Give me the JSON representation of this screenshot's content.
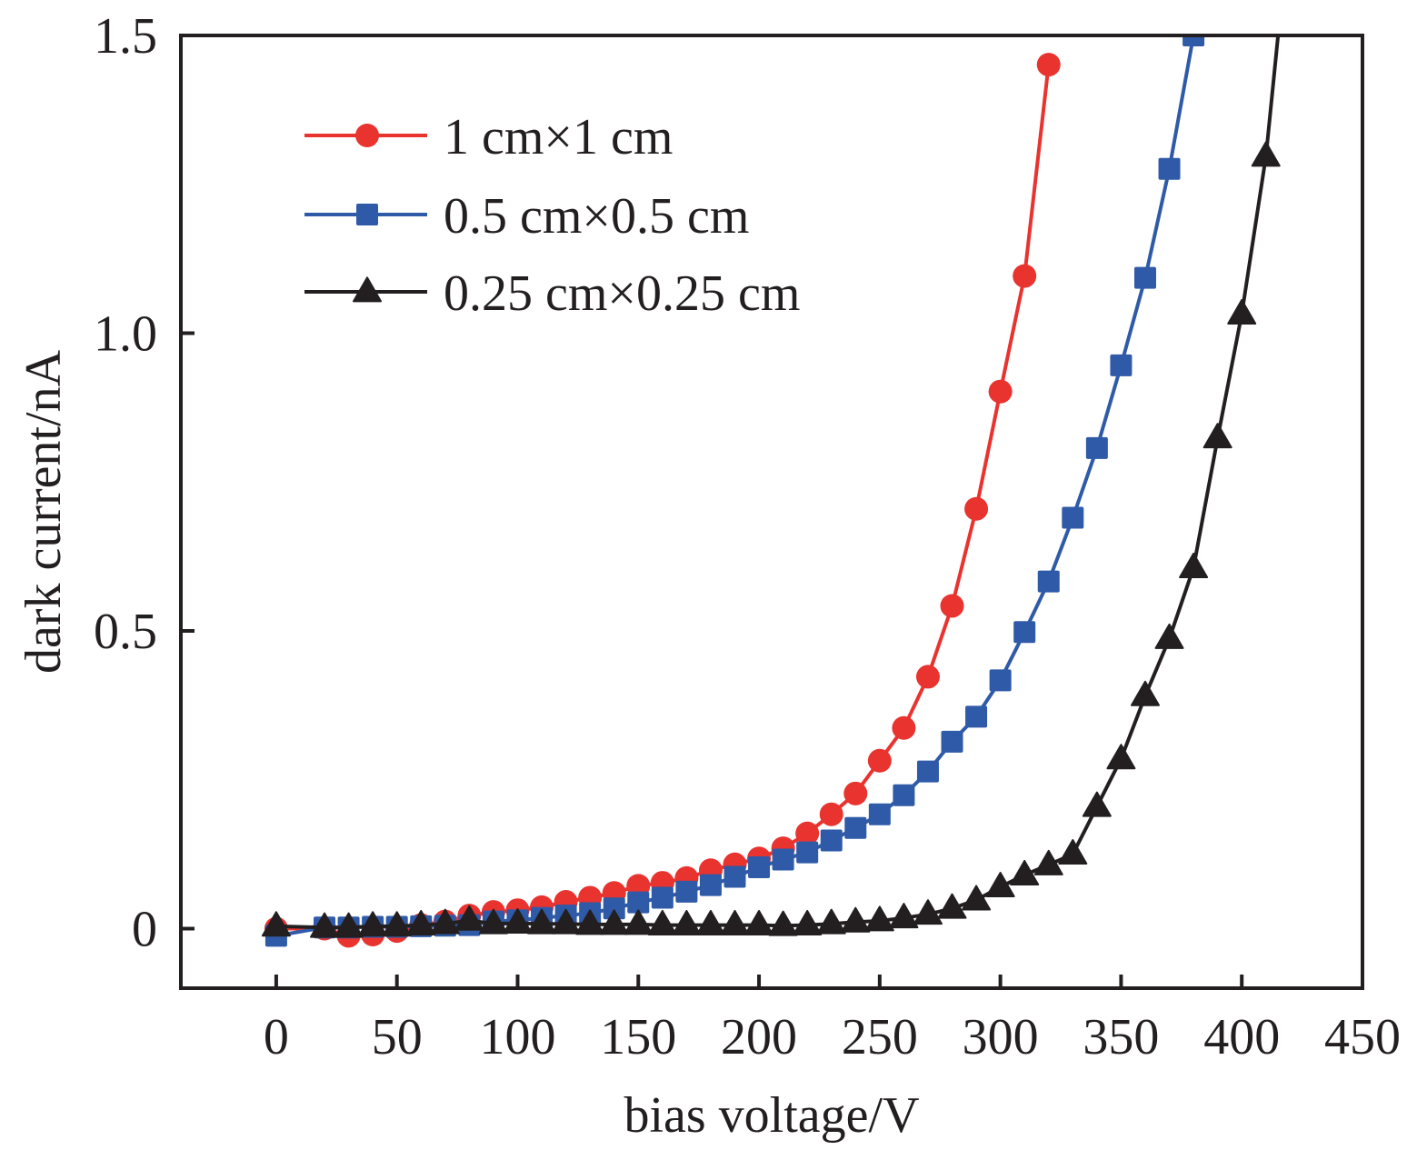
{
  "chart_data": {
    "type": "line",
    "title": "",
    "xlabel": "bias voltage/V",
    "ylabel": "dark current/nA",
    "xlim": [
      -39.5,
      450
    ],
    "ylim": [
      -0.1,
      1.5
    ],
    "xticks": [
      0,
      50,
      100,
      150,
      200,
      250,
      300,
      350,
      400,
      450
    ],
    "xtick_labels": [
      "0",
      "50",
      "100",
      "150",
      "200",
      "250",
      "300",
      "350",
      "400",
      "450"
    ],
    "yticks": [
      0,
      0.5,
      1.0,
      1.5
    ],
    "ytick_labels": [
      "0",
      "0.5",
      "1.0",
      "1.5"
    ],
    "grid": false,
    "legend_position": "top-left",
    "series": [
      {
        "name": "1 cm×1 cm",
        "color": "#e8332f",
        "marker": "circle",
        "x": [
          0,
          20,
          30,
          40,
          50,
          60,
          70,
          80,
          90,
          100,
          110,
          120,
          130,
          140,
          150,
          160,
          170,
          180,
          190,
          200,
          210,
          220,
          230,
          240,
          250,
          260,
          270,
          280,
          290,
          300,
          310,
          320
        ],
        "y": [
          0.0,
          0.0,
          -0.012,
          -0.01,
          -0.004,
          0.006,
          0.012,
          0.022,
          0.028,
          0.031,
          0.036,
          0.045,
          0.052,
          0.06,
          0.072,
          0.077,
          0.085,
          0.098,
          0.108,
          0.118,
          0.135,
          0.16,
          0.192,
          0.227,
          0.282,
          0.337,
          0.423,
          0.542,
          0.705,
          0.902,
          1.096,
          1.451
        ]
      },
      {
        "name": "0.5 cm×0.5 cm",
        "color": "#2f5aa8",
        "marker": "square",
        "x": [
          0,
          20,
          30,
          40,
          50,
          60,
          70,
          80,
          90,
          100,
          110,
          120,
          130,
          140,
          150,
          160,
          170,
          180,
          190,
          200,
          210,
          220,
          230,
          240,
          250,
          260,
          270,
          280,
          290,
          300,
          310,
          320,
          330,
          340,
          350,
          360,
          370,
          380
        ],
        "y": [
          -0.012,
          0.002,
          0.002,
          0.003,
          0.003,
          0.004,
          0.005,
          0.006,
          0.012,
          0.014,
          0.018,
          0.022,
          0.026,
          0.034,
          0.044,
          0.052,
          0.062,
          0.073,
          0.087,
          0.103,
          0.116,
          0.128,
          0.148,
          0.169,
          0.192,
          0.224,
          0.264,
          0.314,
          0.356,
          0.417,
          0.498,
          0.583,
          0.69,
          0.807,
          0.946,
          1.093,
          1.276,
          1.5
        ]
      },
      {
        "name": "0.25 cm×0.25 cm",
        "color": "#231f20",
        "marker": "triangle",
        "x": [
          0,
          20,
          30,
          40,
          50,
          60,
          70,
          80,
          90,
          100,
          110,
          120,
          130,
          140,
          150,
          160,
          170,
          180,
          190,
          200,
          210,
          220,
          230,
          240,
          250,
          260,
          270,
          280,
          290,
          300,
          310,
          320,
          330,
          340,
          350,
          360,
          370,
          380,
          390,
          400,
          410,
          420
        ],
        "y": [
          0.004,
          0.002,
          0.002,
          0.004,
          0.004,
          0.006,
          0.008,
          0.014,
          0.008,
          0.009,
          0.008,
          0.008,
          0.007,
          0.007,
          0.007,
          0.006,
          0.006,
          0.006,
          0.006,
          0.006,
          0.005,
          0.006,
          0.008,
          0.011,
          0.013,
          0.018,
          0.024,
          0.034,
          0.048,
          0.07,
          0.09,
          0.107,
          0.125,
          0.205,
          0.285,
          0.391,
          0.487,
          0.606,
          0.824,
          1.032,
          1.297,
          1.7
        ]
      }
    ]
  }
}
